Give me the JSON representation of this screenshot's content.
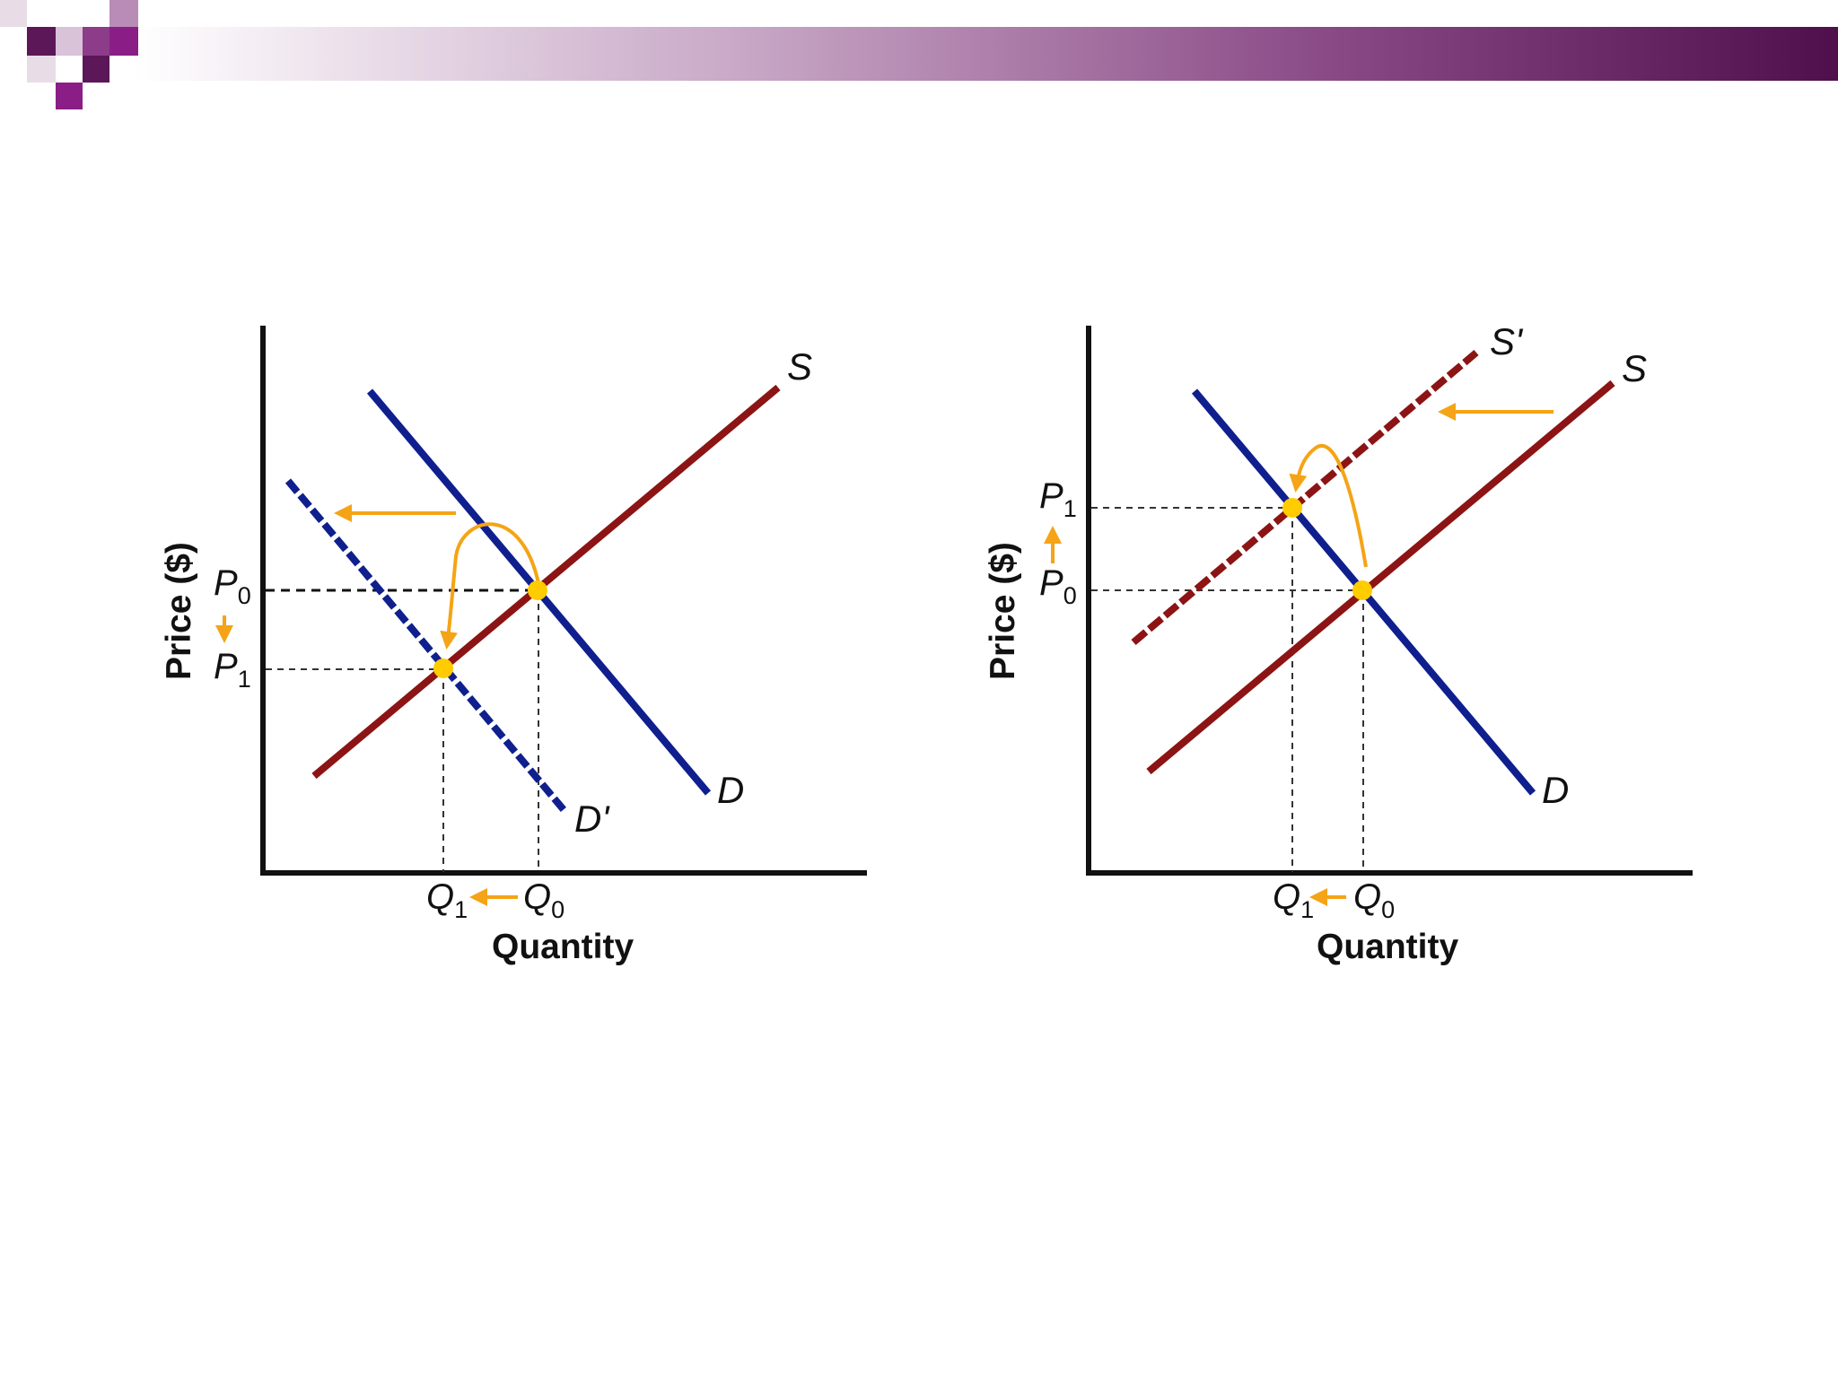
{
  "colors": {
    "banner_start": "#ffffff",
    "banner_end": "#4f0f4c",
    "deco_dark": "#5b1758",
    "deco_mid": "#8c3c89",
    "deco_light": "#b88cb6",
    "deco_pale": "#d9c3d8",
    "axis": "#111111",
    "demand": "#0f1f8e",
    "supply": "#8c1414",
    "shift_arrow": "#f4a416",
    "equilibrium_point": "#ffcc00"
  },
  "left_panel": {
    "y_axis_label": "Price ($)",
    "x_axis_label": "Quantity",
    "curves": {
      "supply": "S",
      "demand": "D",
      "demand_new": "D'"
    },
    "price_marks": [
      {
        "letter": "P",
        "sub": "0"
      },
      {
        "letter": "P",
        "sub": "1"
      }
    ],
    "quantity_marks": [
      {
        "letter": "Q",
        "sub": "1"
      },
      {
        "letter": "Q",
        "sub": "0"
      }
    ],
    "shift": "demand decreases (shifts left)",
    "price_change": "down",
    "quantity_change": "down"
  },
  "right_panel": {
    "y_axis_label": "Price ($)",
    "x_axis_label": "Quantity",
    "curves": {
      "supply": "S",
      "supply_new": "S'",
      "demand": "D"
    },
    "price_marks": [
      {
        "letter": "P",
        "sub": "1"
      },
      {
        "letter": "P",
        "sub": "0"
      }
    ],
    "quantity_marks": [
      {
        "letter": "Q",
        "sub": "1"
      },
      {
        "letter": "Q",
        "sub": "0"
      }
    ],
    "shift": "supply decreases (shifts left)",
    "price_change": "up",
    "quantity_change": "down"
  }
}
